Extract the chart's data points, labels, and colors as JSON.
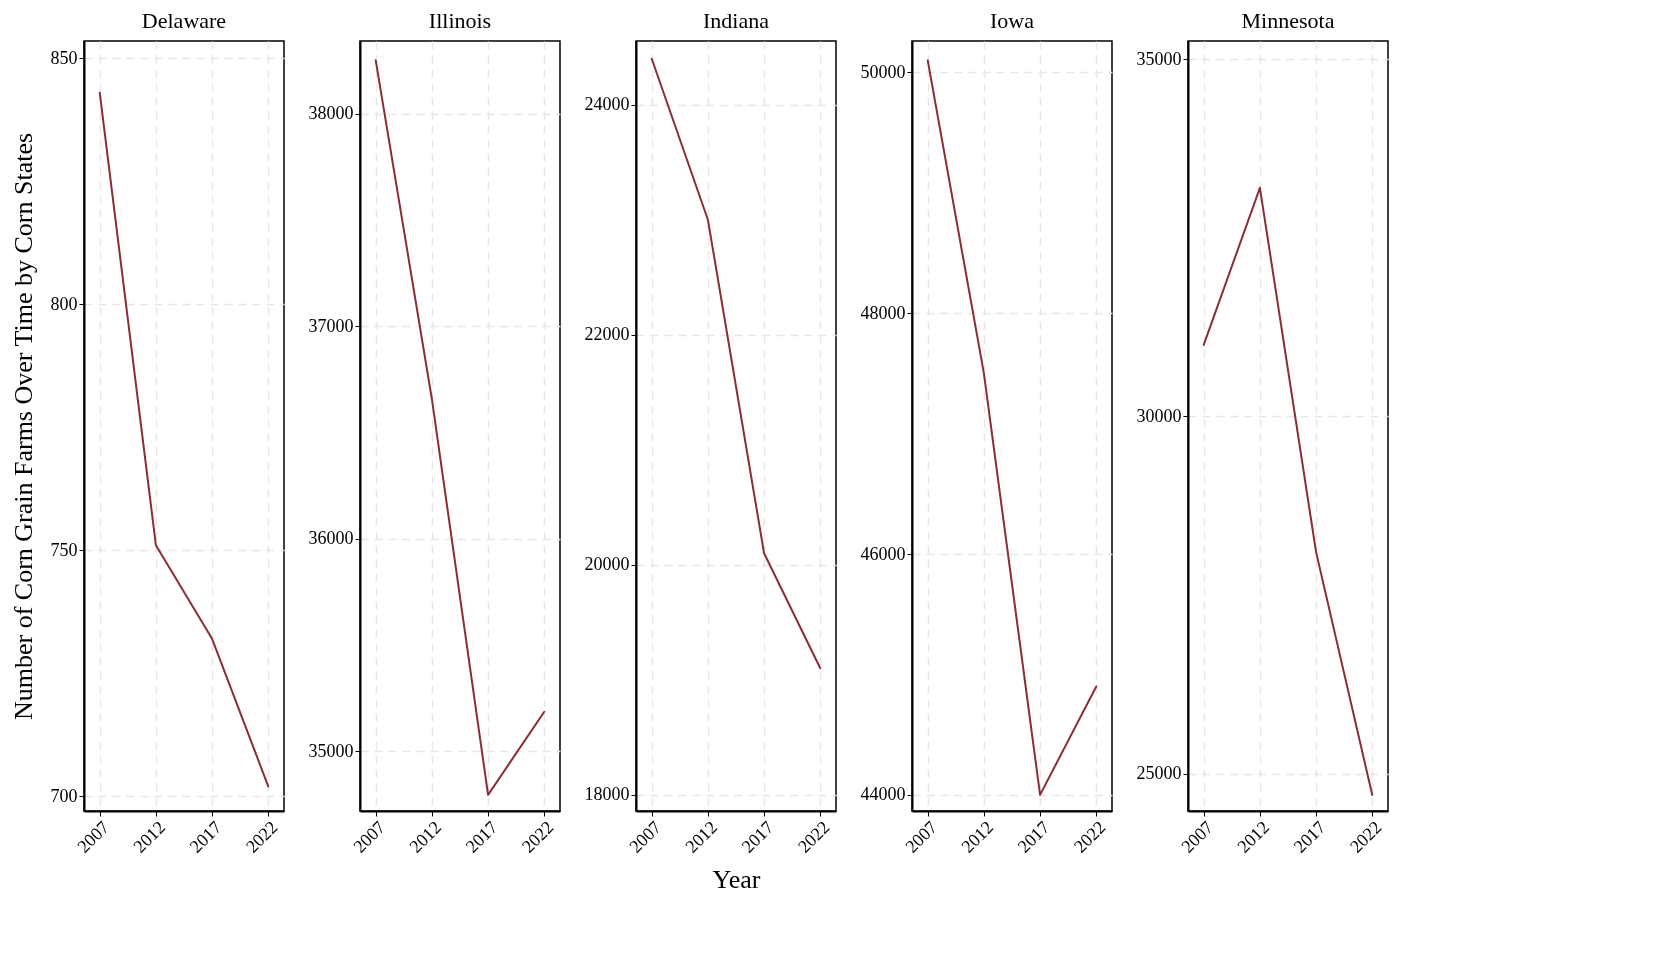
{
  "chart_data": [
    {
      "type": "line",
      "title": "Delaware",
      "ylabel": "Number of Corn Grain Farms Over Time by Corn States",
      "x": [
        2007,
        2012,
        2017,
        2022
      ],
      "series": [
        {
          "color": "#8b2d37",
          "values": [
            843,
            751,
            732,
            702
          ]
        }
      ],
      "xlim": [
        2005.6,
        2023.4
      ],
      "xticks": [
        2007,
        2012,
        2017,
        2022
      ],
      "ylim": [
        697,
        853.5
      ],
      "yticks": [
        700,
        750,
        800,
        850
      ],
      "grid": true
    },
    {
      "type": "line",
      "title": "Illinois",
      "x": [
        2007,
        2012,
        2017,
        2022
      ],
      "series": [
        {
          "color": "#8b2d37",
          "values": [
            38252,
            36657,
            34795,
            35186
          ]
        }
      ],
      "xlim": [
        2005.6,
        2023.4
      ],
      "xticks": [
        2007,
        2012,
        2017,
        2022
      ],
      "ylim": [
        34719,
        38343
      ],
      "yticks": [
        35000,
        36000,
        37000,
        38000
      ],
      "grid": true
    },
    {
      "type": "line",
      "title": "Indiana",
      "xlabel": "Year",
      "x": [
        2007,
        2012,
        2017,
        2022
      ],
      "series": [
        {
          "color": "#8b2d37",
          "values": [
            24400,
            23000,
            20100,
            19100
          ]
        }
      ],
      "xlim": [
        2005.6,
        2023.4
      ],
      "xticks": [
        2007,
        2012,
        2017,
        2022
      ],
      "ylim": [
        17859,
        24554
      ],
      "yticks": [
        18000,
        20000,
        22000,
        24000
      ],
      "grid": true
    },
    {
      "type": "line",
      "title": "Iowa",
      "x": [
        2007,
        2012,
        2017,
        2022
      ],
      "series": [
        {
          "color": "#8b2d37",
          "values": [
            50100,
            47500,
            44000,
            44900
          ]
        }
      ],
      "xlim": [
        2005.6,
        2023.4
      ],
      "xticks": [
        2007,
        2012,
        2017,
        2022
      ],
      "ylim": [
        43866,
        50261
      ],
      "yticks": [
        44000,
        46000,
        48000,
        50000
      ],
      "grid": true
    },
    {
      "type": "line",
      "title": "Minnesota",
      "x": [
        2007,
        2012,
        2017,
        2022
      ],
      "series": [
        {
          "color": "#8b2d37",
          "values": [
            31000,
            33200,
            28100,
            24700
          ]
        }
      ],
      "xlim": [
        2005.6,
        2023.4
      ],
      "xticks": [
        2007,
        2012,
        2017,
        2022
      ],
      "ylim": [
        24476,
        35255
      ],
      "yticks": [
        25000,
        30000,
        35000
      ],
      "grid": true
    }
  ]
}
